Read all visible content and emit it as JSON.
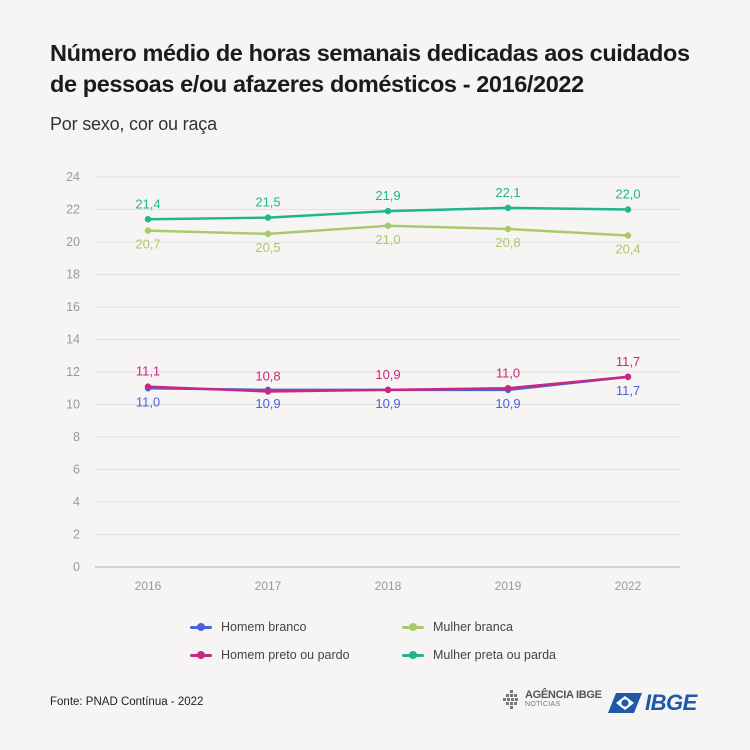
{
  "header": {
    "title": "Número médio de horas semanais dedicadas aos cuidados de pessoas e/ou afazeres domésticos - 2016/2022",
    "subtitle": "Por sexo, cor ou raça"
  },
  "chart_data": {
    "type": "line",
    "title": "Número médio de horas semanais dedicadas aos cuidados de pessoas e/ou afazeres domésticos - 2016/2022",
    "subtitle": "Por sexo, cor ou raça",
    "x": [
      "2016",
      "2017",
      "2018",
      "2019",
      "2022"
    ],
    "ylim": [
      0,
      24
    ],
    "yticks": [
      0,
      2,
      4,
      6,
      8,
      10,
      12,
      14,
      16,
      18,
      20,
      22,
      24
    ],
    "grid": true,
    "legend_position": "bottom",
    "series": [
      {
        "name": "Homem branco",
        "color": "#4a62d6",
        "values": [
          11.0,
          10.9,
          10.9,
          10.9,
          11.7
        ],
        "labels": [
          "11,0",
          "10,9",
          "10,9",
          "10,9",
          "11,7"
        ],
        "label_position": "below"
      },
      {
        "name": "Homem preto ou pardo",
        "color": "#c8287f",
        "values": [
          11.1,
          10.8,
          10.9,
          11.0,
          11.7
        ],
        "labels": [
          "11,1",
          "10,8",
          "10,9",
          "11,0",
          "11,7"
        ],
        "label_position": "above"
      },
      {
        "name": "Mulher branca",
        "color": "#a9c96a",
        "values": [
          20.7,
          20.5,
          21.0,
          20.8,
          20.4
        ],
        "labels": [
          "20,7",
          "20,5",
          "21,0",
          "20,8",
          "20,4"
        ],
        "label_position": "below"
      },
      {
        "name": "Mulher preta ou parda",
        "color": "#1fb58f",
        "values": [
          21.4,
          21.5,
          21.9,
          22.1,
          22.0
        ],
        "labels": [
          "21,4",
          "21,5",
          "21,9",
          "22,1",
          "22,0"
        ],
        "label_position": "above"
      }
    ]
  },
  "legend": {
    "items": [
      {
        "label": "Homem branco",
        "color": "#4a62d6"
      },
      {
        "label": "Mulher branca",
        "color": "#a9c96a"
      },
      {
        "label": "Homem preto ou pardo",
        "color": "#c8287f"
      },
      {
        "label": "Mulher preta ou parda",
        "color": "#1fb58f"
      }
    ]
  },
  "footer": {
    "source": "Fonte: PNAD Contínua - 2022",
    "agencia_name": "AGÊNCIA IBGE",
    "agencia_sub": "NOTÍCIAS",
    "ibge": "IBGE"
  }
}
